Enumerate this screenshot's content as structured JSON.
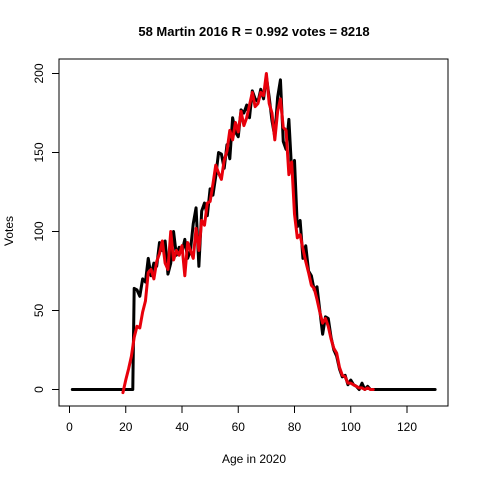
{
  "chart_data": {
    "type": "line",
    "title": "58 Martin 2016 R = 0.992 votes = 8218",
    "xlabel": "Age in 2020",
    "ylabel": "Votes",
    "xlim": [
      0,
      130
    ],
    "ylim": [
      0,
      200
    ],
    "xticks": [
      0,
      20,
      40,
      60,
      80,
      100,
      120
    ],
    "yticks": [
      0,
      50,
      100,
      150,
      200
    ],
    "grid": false,
    "colors": {
      "black": "#000000",
      "red": "#e8000b"
    },
    "series": [
      {
        "color": "#000000",
        "points": [
          [
            1,
            0
          ],
          [
            5,
            0
          ],
          [
            10,
            0
          ],
          [
            15,
            0
          ],
          [
            20,
            0
          ],
          [
            21.5,
            0
          ],
          [
            22.5,
            0
          ],
          [
            23,
            64
          ],
          [
            24,
            63
          ],
          [
            25,
            59
          ],
          [
            26,
            70
          ],
          [
            27,
            68
          ],
          [
            28,
            83
          ],
          [
            29,
            72
          ],
          [
            30,
            80
          ],
          [
            31,
            78
          ],
          [
            32,
            93
          ],
          [
            33,
            88
          ],
          [
            34,
            94
          ],
          [
            35,
            73
          ],
          [
            36,
            80
          ],
          [
            37,
            100
          ],
          [
            38,
            85
          ],
          [
            39,
            90
          ],
          [
            40,
            87
          ],
          [
            41,
            95
          ],
          [
            42,
            83
          ],
          [
            43,
            88
          ],
          [
            44,
            105
          ],
          [
            45,
            115
          ],
          [
            46,
            78
          ],
          [
            47,
            113
          ],
          [
            48,
            118
          ],
          [
            49,
            110
          ],
          [
            50,
            127
          ],
          [
            51,
            123
          ],
          [
            52,
            135
          ],
          [
            53,
            150
          ],
          [
            54,
            149
          ],
          [
            55,
            140
          ],
          [
            56,
            155
          ],
          [
            57,
            146
          ],
          [
            58,
            172
          ],
          [
            59,
            163
          ],
          [
            60,
            160
          ],
          [
            61,
            177
          ],
          [
            62,
            175
          ],
          [
            63,
            180
          ],
          [
            64,
            172
          ],
          [
            65,
            189
          ],
          [
            66,
            184
          ],
          [
            67,
            182
          ],
          [
            68,
            190
          ],
          [
            69,
            184
          ],
          [
            70,
            198
          ],
          [
            71,
            185
          ],
          [
            72,
            170
          ],
          [
            73,
            160
          ],
          [
            74,
            185
          ],
          [
            75,
            196
          ],
          [
            76,
            157
          ],
          [
            77,
            152
          ],
          [
            78,
            171
          ],
          [
            79,
            138
          ],
          [
            80,
            145
          ],
          [
            81,
            103
          ],
          [
            82,
            107
          ],
          [
            83,
            83
          ],
          [
            84,
            91
          ],
          [
            85,
            75
          ],
          [
            86,
            72
          ],
          [
            87,
            63
          ],
          [
            88,
            65
          ],
          [
            89,
            50
          ],
          [
            90,
            35
          ],
          [
            91,
            46
          ],
          [
            92,
            45
          ],
          [
            93,
            33
          ],
          [
            94,
            25
          ],
          [
            95,
            21
          ],
          [
            96,
            13
          ],
          [
            97,
            8
          ],
          [
            98,
            9
          ],
          [
            99,
            3
          ],
          [
            100,
            6
          ],
          [
            101,
            3
          ],
          [
            102,
            2
          ],
          [
            103,
            0
          ],
          [
            104,
            4
          ],
          [
            105,
            0
          ],
          [
            106,
            2
          ],
          [
            107,
            0
          ],
          [
            110,
            0
          ],
          [
            115,
            0
          ],
          [
            120,
            0
          ],
          [
            125,
            0
          ],
          [
            130,
            0
          ]
        ]
      },
      {
        "color": "#e8000b",
        "points": [
          [
            19,
            -2
          ],
          [
            20,
            6
          ],
          [
            21,
            13
          ],
          [
            22,
            21
          ],
          [
            23,
            33
          ],
          [
            24,
            40
          ],
          [
            25,
            39
          ],
          [
            26,
            49
          ],
          [
            27,
            56
          ],
          [
            28,
            74
          ],
          [
            29,
            76
          ],
          [
            30,
            70
          ],
          [
            31,
            81
          ],
          [
            32,
            86
          ],
          [
            33,
            94
          ],
          [
            34,
            80
          ],
          [
            35,
            76
          ],
          [
            36,
            100
          ],
          [
            37,
            82
          ],
          [
            38,
            88
          ],
          [
            39,
            85
          ],
          [
            40,
            91
          ],
          [
            41,
            72
          ],
          [
            42,
            93
          ],
          [
            43,
            88
          ],
          [
            44,
            83
          ],
          [
            45,
            102
          ],
          [
            46,
            88
          ],
          [
            47,
            107
          ],
          [
            48,
            104
          ],
          [
            49,
            118
          ],
          [
            50,
            119
          ],
          [
            51,
            130
          ],
          [
            52,
            142
          ],
          [
            53,
            137
          ],
          [
            54,
            133
          ],
          [
            55,
            145
          ],
          [
            56,
            151
          ],
          [
            57,
            164
          ],
          [
            58,
            158
          ],
          [
            59,
            169
          ],
          [
            60,
            163
          ],
          [
            61,
            176
          ],
          [
            62,
            167
          ],
          [
            63,
            172
          ],
          [
            64,
            180
          ],
          [
            65,
            188
          ],
          [
            66,
            179
          ],
          [
            67,
            181
          ],
          [
            68,
            188
          ],
          [
            69,
            186
          ],
          [
            70,
            200
          ],
          [
            71,
            181
          ],
          [
            72,
            175
          ],
          [
            73,
            158
          ],
          [
            74,
            176
          ],
          [
            75,
            184
          ],
          [
            76,
            166
          ],
          [
            77,
            164
          ],
          [
            78,
            136
          ],
          [
            79,
            144
          ],
          [
            80,
            111
          ],
          [
            81,
            96
          ],
          [
            82,
            98
          ],
          [
            83,
            89
          ],
          [
            84,
            81
          ],
          [
            85,
            74
          ],
          [
            86,
            66
          ],
          [
            87,
            64
          ],
          [
            88,
            57
          ],
          [
            89,
            49
          ],
          [
            90,
            42
          ],
          [
            91,
            45
          ],
          [
            92,
            40
          ],
          [
            93,
            32
          ],
          [
            94,
            26
          ],
          [
            95,
            23
          ],
          [
            96,
            14
          ],
          [
            97,
            9
          ],
          [
            98,
            8
          ],
          [
            99,
            4
          ],
          [
            100,
            4
          ],
          [
            101,
            3
          ],
          [
            102,
            2
          ],
          [
            103,
            1
          ],
          [
            104,
            1
          ],
          [
            105,
            0
          ],
          [
            106,
            1
          ],
          [
            107,
            0
          ],
          [
            108,
            0
          ]
        ]
      }
    ]
  }
}
